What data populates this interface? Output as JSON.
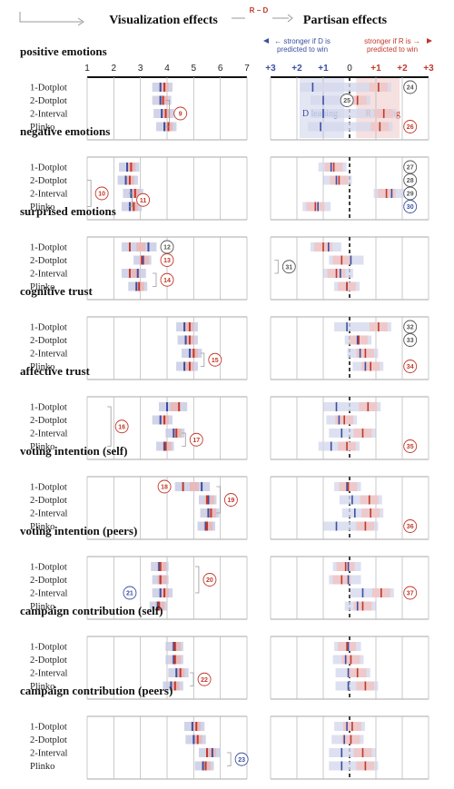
{
  "header": {
    "left_title": "Visualization effects",
    "right_title": "Partisan effects",
    "rd_label": "R − D",
    "d_legend": [
      "← stronger if D is",
      "predicted to win"
    ],
    "r_legend": [
      "stronger if R is →",
      "predicted to win"
    ],
    "d_leaning": "D leaning",
    "r_leaning": "R leaning"
  },
  "colors": {
    "blue": "#3a4fa3",
    "red": "#c0392b",
    "grey": "#555555"
  },
  "chart_data": {
    "type": "interval",
    "left_axis": {
      "ticks": [
        "1",
        "2",
        "3",
        "4",
        "5",
        "6",
        "7"
      ],
      "range": [
        1,
        7
      ]
    },
    "right_axis": {
      "ticks": [
        "+3",
        "+2",
        "+1",
        "0",
        "+1",
        "+2",
        "+3"
      ],
      "range": [
        -3,
        3
      ]
    },
    "conditions": [
      "1-Dotplot",
      "2-Dotplot",
      "2-Interval",
      "Plinko"
    ],
    "panels": [
      {
        "title": "positive emotions",
        "viz": [
          {
            "d": 3.75,
            "r": 3.9
          },
          {
            "d": 3.75,
            "r": 3.85
          },
          {
            "d": 3.8,
            "r": 3.95
          },
          {
            "d": 3.9,
            "r": 4.05
          }
        ],
        "par": [
          {
            "d": -1.4,
            "r": 1.1
          },
          {
            "d": -1.0,
            "r": 0.3
          },
          {
            "d": -1.0,
            "r": 1.3
          },
          {
            "d": -1.1,
            "r": 1.15
          }
        ],
        "ann": [
          {
            "n": "9",
            "side": "left",
            "rows": [
              1,
              3
            ],
            "c": "red",
            "x": 4.5
          },
          {
            "n": "24",
            "side": "right",
            "rows": [
              0,
              0
            ],
            "c": "grey",
            "x": 2.3
          },
          {
            "n": "25",
            "side": "right",
            "rows": [
              1,
              1
            ],
            "c": "grey",
            "x": -0.1
          },
          {
            "n": "26",
            "side": "right",
            "rows": [
              3,
              3
            ],
            "c": "red",
            "x": 2.3
          }
        ]
      },
      {
        "title": "negative emotions",
        "viz": [
          {
            "d": 2.5,
            "r": 2.65
          },
          {
            "d": 2.45,
            "r": 2.6
          },
          {
            "d": 2.65,
            "r": 2.8
          },
          {
            "d": 2.6,
            "r": 2.75
          }
        ],
        "par": [
          {
            "d": -0.7,
            "r": -0.6
          },
          {
            "d": -0.5,
            "r": -0.4
          },
          {
            "d": 1.6,
            "r": 1.4
          },
          {
            "d": -1.2,
            "r": -1.3
          }
        ],
        "ann": [
          {
            "n": "10",
            "side": "left",
            "rows": [
              1,
              3
            ],
            "c": "red",
            "x": 1.55
          },
          {
            "n": "11",
            "side": "left",
            "rows": [
              2,
              3
            ],
            "c": "red",
            "x": 3.1
          },
          {
            "n": "27",
            "side": "right",
            "rows": [
              0,
              0
            ],
            "c": "grey",
            "x": 2.3
          },
          {
            "n": "28",
            "side": "right",
            "rows": [
              1,
              1
            ],
            "c": "grey",
            "x": 2.3
          },
          {
            "n": "29",
            "side": "right",
            "rows": [
              2,
              2
            ],
            "c": "grey",
            "x": 2.3
          },
          {
            "n": "30",
            "side": "right",
            "rows": [
              3,
              3
            ],
            "c": "blue",
            "x": 2.3
          }
        ]
      },
      {
        "title": "surprised emotions",
        "viz": [
          {
            "d": 3.3,
            "r": 2.6
          },
          {
            "d": 3.1,
            "r": 3.05
          },
          {
            "d": 2.9,
            "r": 2.6
          },
          {
            "d": 2.85,
            "r": 2.95
          }
        ],
        "par": [
          {
            "d": -0.8,
            "r": -1.0
          },
          {
            "d": 0.05,
            "r": -0.3
          },
          {
            "d": -0.35,
            "r": -0.5
          },
          {
            "d": -0.1,
            "r": -0.1
          }
        ],
        "ann": [
          {
            "n": "12",
            "side": "left",
            "rows": [
              0,
              0
            ],
            "c": "grey",
            "x": 4.0
          },
          {
            "n": "13",
            "side": "left",
            "rows": [
              1,
              1
            ],
            "c": "red",
            "x": 4.0
          },
          {
            "n": "14",
            "side": "left",
            "rows": [
              2,
              3
            ],
            "c": "red",
            "x": 4.0
          },
          {
            "n": "31",
            "side": "right",
            "rows": [
              1,
              2
            ],
            "c": "grey",
            "x": -2.3
          }
        ]
      },
      {
        "title": "cognitive trust",
        "viz": [
          {
            "d": 4.65,
            "r": 4.85
          },
          {
            "d": 4.7,
            "r": 4.85
          },
          {
            "d": 4.85,
            "r": 5.0
          },
          {
            "d": 4.65,
            "r": 4.85
          }
        ],
        "par": [
          {
            "d": -0.1,
            "r": 1.1
          },
          {
            "d": 0.3,
            "r": 0.35
          },
          {
            "d": 0.4,
            "r": 0.6
          },
          {
            "d": 0.6,
            "r": 0.8
          }
        ],
        "ann": [
          {
            "n": "15",
            "side": "left",
            "rows": [
              2,
              3
            ],
            "c": "red",
            "x": 5.8
          },
          {
            "n": "32",
            "side": "right",
            "rows": [
              0,
              0
            ],
            "c": "grey",
            "x": 2.3
          },
          {
            "n": "33",
            "side": "right",
            "rows": [
              1,
              1
            ],
            "c": "grey",
            "x": 2.3
          },
          {
            "n": "34",
            "side": "right",
            "rows": [
              3,
              3
            ],
            "c": "red",
            "x": 2.3
          }
        ]
      },
      {
        "title": "affective trust",
        "viz": [
          {
            "d": 4.0,
            "r": 4.45
          },
          {
            "d": 3.75,
            "r": 3.9
          },
          {
            "d": 4.25,
            "r": 4.35
          },
          {
            "d": 3.9,
            "r": 3.95
          }
        ],
        "par": [
          {
            "d": -0.5,
            "r": 0.7
          },
          {
            "d": -0.4,
            "r": -0.2
          },
          {
            "d": -0.3,
            "r": 0.5
          },
          {
            "d": -0.7,
            "r": -0.1
          }
        ],
        "ann": [
          {
            "n": "16",
            "side": "left",
            "rows": [
              0,
              3
            ],
            "c": "red",
            "x": 2.3
          },
          {
            "n": "17",
            "side": "left",
            "rows": [
              2,
              3
            ],
            "c": "red",
            "x": 5.1
          },
          {
            "n": "35",
            "side": "right",
            "rows": [
              3,
              3
            ],
            "c": "red",
            "x": 2.3
          }
        ]
      },
      {
        "title": "voting intention (self)",
        "viz": [
          {
            "d": 5.3,
            "r": 4.6
          },
          {
            "d": 5.55,
            "r": 5.5
          },
          {
            "d": 5.55,
            "r": 5.65
          },
          {
            "d": 5.45,
            "r": 5.5
          }
        ],
        "par": [
          {
            "d": -0.1,
            "r": -0.05
          },
          {
            "d": 0.1,
            "r": 0.75
          },
          {
            "d": 0.2,
            "r": 0.8
          },
          {
            "d": -0.5,
            "r": 0.6
          }
        ],
        "ann": [
          {
            "n": "18",
            "side": "left",
            "rows": [
              0,
              0
            ],
            "c": "red",
            "x": 3.9
          },
          {
            "n": "19",
            "side": "left",
            "rows": [
              0,
              2
            ],
            "c": "red",
            "x": 6.4
          },
          {
            "n": "36",
            "side": "right",
            "rows": [
              3,
              3
            ],
            "c": "red",
            "x": 2.3
          }
        ]
      },
      {
        "title": "voting intention (peers)",
        "viz": [
          {
            "d": 3.7,
            "r": 3.75
          },
          {
            "d": 3.75,
            "r": 3.75
          },
          {
            "d": 3.75,
            "r": 3.9
          },
          {
            "d": 3.65,
            "r": 3.7
          }
        ],
        "par": [
          {
            "d": -0.05,
            "r": -0.15
          },
          {
            "d": -0.05,
            "r": -0.3
          },
          {
            "d": 0.5,
            "r": 1.2
          },
          {
            "d": 0.3,
            "r": 0.5
          }
        ],
        "ann": [
          {
            "n": "20",
            "side": "left",
            "rows": [
              0,
              2
            ],
            "c": "red",
            "x": 5.6
          },
          {
            "n": "21",
            "side": "left",
            "rows": [
              2,
              2
            ],
            "c": "blue",
            "x": 2.6
          },
          {
            "n": "37",
            "side": "right",
            "rows": [
              2,
              2
            ],
            "c": "red",
            "x": 2.3
          }
        ]
      },
      {
        "title": "campaign contribution (self)",
        "viz": [
          {
            "d": 4.25,
            "r": 4.3
          },
          {
            "d": 4.25,
            "r": 4.3
          },
          {
            "d": 4.35,
            "r": 4.5
          },
          {
            "d": 4.15,
            "r": 4.3
          }
        ],
        "par": [
          {
            "d": -0.05,
            "r": -0.1
          },
          {
            "d": -0.15,
            "r": 0.05
          },
          {
            "d": -0.05,
            "r": 0.3
          },
          {
            "d": -0.05,
            "r": 0.6
          }
        ],
        "ann": [
          {
            "n": "22",
            "side": "left",
            "rows": [
              2,
              3
            ],
            "c": "red",
            "x": 5.4
          }
        ]
      },
      {
        "title": "campaign contribution (peers)",
        "viz": [
          {
            "d": 4.95,
            "r": 5.1
          },
          {
            "d": 5.0,
            "r": 5.15
          },
          {
            "d": 5.7,
            "r": 5.5
          },
          {
            "d": 5.35,
            "r": 5.45
          }
        ],
        "par": [
          {
            "d": -0.1,
            "r": 0.1
          },
          {
            "d": -0.2,
            "r": 0.05
          },
          {
            "d": -0.3,
            "r": 0.5
          },
          {
            "d": -0.3,
            "r": 0.6
          }
        ],
        "ann": [
          {
            "n": "23",
            "side": "left",
            "rows": [
              2,
              3
            ],
            "c": "blue",
            "x": 6.8
          }
        ]
      }
    ]
  }
}
